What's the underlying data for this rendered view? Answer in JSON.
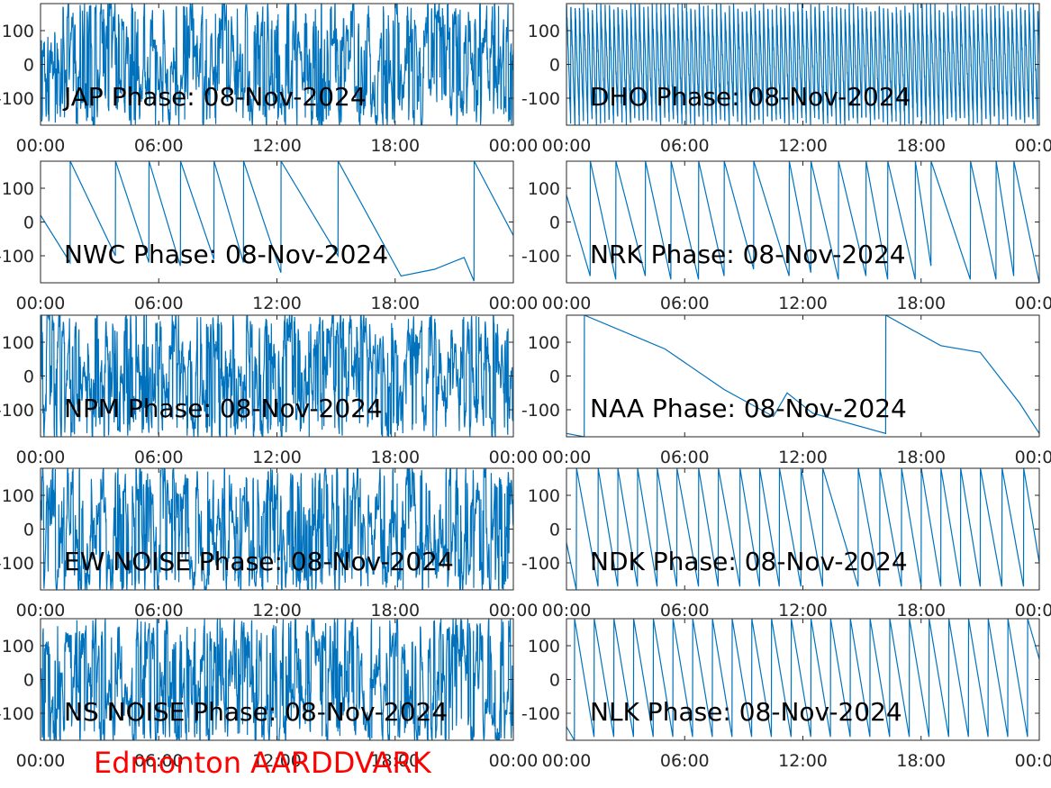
{
  "station_label": "Edmonton AARDDVARK",
  "colors": {
    "line": "#0072bd",
    "axis": "#262626",
    "title": "#000000",
    "station": "#ff0000"
  },
  "chart_data": [
    {
      "type": "line",
      "title": "JAP Phase: 08-Nov-2024",
      "ylim": [
        -180,
        180
      ],
      "yticks": [
        -100,
        0,
        100
      ],
      "xticks": [
        "00:00",
        "06:00",
        "12:00",
        "18:00",
        "00:00"
      ],
      "pattern": "noise"
    },
    {
      "type": "line",
      "title": "DHO Phase: 08-Nov-2024",
      "ylim": [
        -180,
        180
      ],
      "yticks": [
        -100,
        0,
        100
      ],
      "xticks": [
        "00:00",
        "06:00",
        "12:00",
        "18:00",
        "00:00"
      ],
      "pattern": "fast-sawtooth"
    },
    {
      "type": "line",
      "title": "NWC Phase: 08-Nov-2024",
      "ylim": [
        -180,
        180
      ],
      "yticks": [
        -100,
        0,
        100
      ],
      "xticks": [
        "00:00",
        "06:00",
        "12:00",
        "18:00",
        "00:00"
      ],
      "pattern": "sawtooth",
      "x_hours": [
        0,
        1.5,
        1.51,
        3.8,
        3.81,
        5.5,
        5.51,
        7.1,
        7.11,
        8.8,
        8.81,
        10.3,
        10.31,
        12.2,
        12.21,
        15.1,
        15.11,
        18.3,
        20.0,
        21.5,
        22.0,
        22.01,
        24
      ],
      "y_deg": [
        20,
        -120,
        180,
        -100,
        180,
        -120,
        180,
        -130,
        180,
        -110,
        180,
        -120,
        180,
        -150,
        180,
        -100,
        180,
        -160,
        -140,
        -105,
        -175,
        180,
        -40
      ]
    },
    {
      "type": "line",
      "title": "NRK Phase: 08-Nov-2024",
      "ylim": [
        -180,
        180
      ],
      "yticks": [
        -100,
        0,
        100
      ],
      "xticks": [
        "00:00",
        "06:00",
        "12:00",
        "18:00",
        "00:00"
      ],
      "pattern": "sawtooth",
      "x_hours": [
        0,
        1.2,
        1.21,
        2.5,
        2.51,
        4.0,
        4.01,
        5.3,
        5.31,
        6.7,
        6.71,
        8.0,
        8.01,
        9.5,
        9.51,
        11.3,
        11.31,
        12.4,
        12.41,
        13.8,
        13.81,
        15.2,
        15.21,
        16.3,
        16.31,
        17.7,
        17.71,
        18.5,
        18.51,
        20.5,
        20.51,
        21.8,
        21.81,
        22.7,
        22.71,
        24
      ],
      "y_deg": [
        80,
        -160,
        180,
        -170,
        180,
        -160,
        180,
        -170,
        180,
        -170,
        180,
        -160,
        180,
        -140,
        180,
        -160,
        180,
        -150,
        180,
        -170,
        180,
        -160,
        180,
        -170,
        180,
        -170,
        180,
        -130,
        180,
        -170,
        180,
        -170,
        180,
        -160,
        180,
        -180
      ]
    },
    {
      "type": "line",
      "title": "NPM Phase: 08-Nov-2024",
      "ylim": [
        -180,
        180
      ],
      "yticks": [
        -100,
        0,
        100
      ],
      "xticks": [
        "00:00",
        "06:00",
        "12:00",
        "18:00",
        "00:00"
      ],
      "pattern": "noise"
    },
    {
      "type": "line",
      "title": "NAA Phase: 08-Nov-2024",
      "ylim": [
        -180,
        180
      ],
      "yticks": [
        -100,
        0,
        100
      ],
      "xticks": [
        "00:00",
        "06:00",
        "12:00",
        "18:00",
        "00:00"
      ],
      "pattern": "sawtooth",
      "x_hours": [
        0,
        0.9,
        0.91,
        5.0,
        8.0,
        10.5,
        11.2,
        12.5,
        16.2,
        16.21,
        19.0,
        21.0,
        23.0,
        24
      ],
      "y_deg": [
        -170,
        -180,
        180,
        80,
        -40,
        -120,
        -50,
        -110,
        -170,
        180,
        90,
        70,
        -80,
        -170
      ]
    },
    {
      "type": "line",
      "title": "EW NOISE Phase: 08-Nov-2024",
      "ylim": [
        -180,
        180
      ],
      "yticks": [
        -100,
        0,
        100
      ],
      "xticks": [
        "00:00",
        "06:00",
        "12:00",
        "18:00",
        "00:00"
      ],
      "pattern": "noise"
    },
    {
      "type": "line",
      "title": "NDK Phase: 08-Nov-2024",
      "ylim": [
        -180,
        180
      ],
      "yticks": [
        -100,
        0,
        100
      ],
      "xticks": [
        "00:00",
        "06:00",
        "12:00",
        "18:00",
        "00:00"
      ],
      "pattern": "sawtooth",
      "x_hours": [
        0,
        0.5,
        0.51,
        1.6,
        1.61,
        2.6,
        2.61,
        3.6,
        3.61,
        4.6,
        4.61,
        5.6,
        5.61,
        6.7,
        6.71,
        7.7,
        7.71,
        8.8,
        8.81,
        9.8,
        9.81,
        10.8,
        10.81,
        11.9,
        11.91,
        13.0,
        13.01,
        14.8,
        14.81,
        15.9,
        15.91,
        17.0,
        17.01,
        18.0,
        18.01,
        19.0,
        19.01,
        20.0,
        20.01,
        21.0,
        21.01,
        22.1,
        22.11,
        23.2,
        23.21,
        24
      ],
      "y_deg": [
        -40,
        -180,
        180,
        -170,
        180,
        -170,
        180,
        -170,
        180,
        -170,
        180,
        -170,
        180,
        -170,
        180,
        -170,
        180,
        -170,
        180,
        -170,
        180,
        -170,
        180,
        -170,
        180,
        -170,
        180,
        -170,
        180,
        -170,
        180,
        -170,
        180,
        -170,
        180,
        -170,
        180,
        -170,
        180,
        -170,
        180,
        -170,
        180,
        -170,
        180,
        -100
      ]
    },
    {
      "type": "line",
      "title": "NS NOISE Phase: 08-Nov-2024",
      "ylim": [
        -180,
        180
      ],
      "yticks": [
        -100,
        0,
        100
      ],
      "xticks": [
        "00:00",
        "06:00",
        "12:00",
        "18:00",
        "00:00"
      ],
      "pattern": "noise"
    },
    {
      "type": "line",
      "title": "NLK Phase: 08-Nov-2024",
      "ylim": [
        -180,
        180
      ],
      "yticks": [
        -100,
        0,
        100
      ],
      "xticks": [
        "00:00",
        "06:00",
        "12:00",
        "18:00",
        "00:00"
      ],
      "pattern": "sawtooth",
      "x_hours": [
        0,
        0.4,
        0.41,
        1.4,
        1.41,
        2.4,
        2.41,
        3.4,
        3.41,
        4.4,
        4.41,
        5.4,
        5.41,
        6.4,
        6.41,
        7.4,
        7.41,
        8.4,
        8.41,
        9.4,
        9.41,
        10.4,
        10.41,
        11.4,
        11.41,
        12.4,
        12.41,
        13.4,
        13.41,
        14.4,
        14.41,
        15.4,
        15.41,
        16.4,
        16.41,
        17.4,
        17.41,
        18.4,
        18.41,
        19.4,
        19.41,
        20.4,
        20.41,
        21.4,
        21.41,
        22.4,
        22.41,
        23.4,
        23.41,
        24
      ],
      "y_deg": [
        -140,
        -180,
        180,
        -170,
        180,
        -170,
        180,
        -170,
        180,
        -170,
        180,
        -170,
        180,
        -170,
        180,
        -170,
        180,
        -170,
        180,
        -170,
        180,
        -170,
        180,
        -170,
        180,
        -170,
        180,
        -170,
        180,
        -170,
        180,
        -170,
        180,
        -170,
        180,
        -170,
        180,
        -170,
        180,
        -170,
        180,
        -170,
        180,
        -170,
        180,
        -170,
        180,
        -170,
        180,
        60
      ]
    }
  ]
}
